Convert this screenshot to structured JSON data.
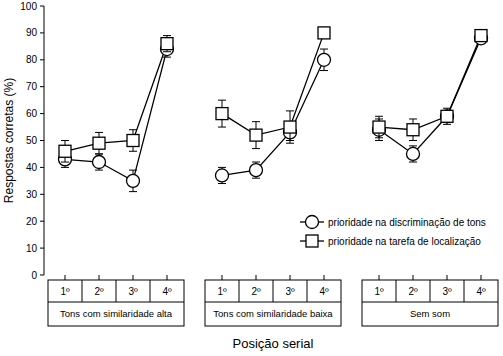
{
  "chart_data": {
    "type": "line",
    "y_label": "Respostas corretas (%)",
    "x_label": "Posição serial",
    "categories": [
      "1º",
      "2º",
      "3º",
      "4º"
    ],
    "groups": [
      "Tons com similaridade alta",
      "Tons com similaridade baixa",
      "Sem som"
    ],
    "ylim": [
      0,
      100
    ],
    "yticks": [
      0,
      10,
      20,
      30,
      40,
      50,
      60,
      70,
      80,
      90,
      100
    ],
    "grid": false,
    "legend": "lower right",
    "series": [
      {
        "name": "prioridade na discriminação de tons",
        "color": "#000000",
        "marker": "circle",
        "values": [
          [
            43,
            42,
            35,
            84
          ],
          [
            37,
            39,
            53,
            80
          ],
          [
            54,
            45,
            59,
            88
          ]
        ],
        "errors": [
          [
            3,
            3,
            4,
            3
          ],
          [
            3,
            3,
            3,
            4
          ],
          [
            4,
            3,
            3,
            2
          ]
        ]
      },
      {
        "name": "prioridade na tarefa de localização",
        "color": "#000000",
        "marker": "square",
        "values": [
          [
            46,
            49,
            50,
            86
          ],
          [
            60,
            52,
            55,
            90
          ],
          [
            55,
            54,
            59,
            89
          ]
        ],
        "errors": [
          [
            4,
            4,
            4,
            3
          ],
          [
            5,
            5,
            6,
            2
          ],
          [
            4,
            4,
            2,
            2
          ]
        ]
      }
    ]
  }
}
